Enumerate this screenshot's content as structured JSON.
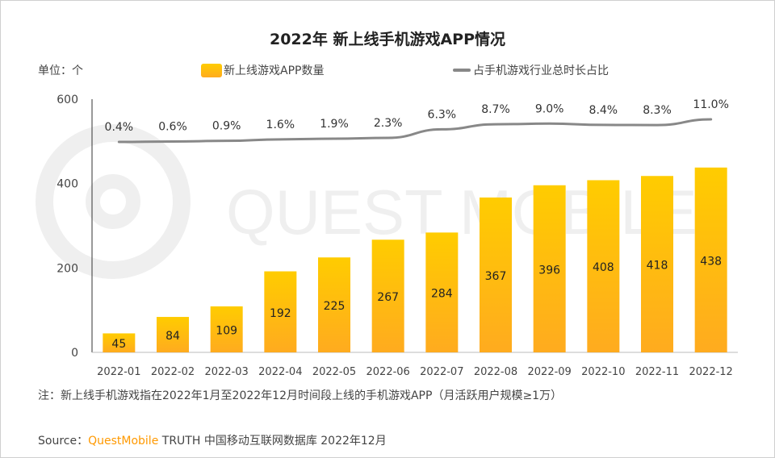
{
  "chart_data": {
    "type": "bar+line",
    "title": "2022年 新上线手机游戏APP情况",
    "unit_label": "单位：个",
    "categories": [
      "2022-01",
      "2022-02",
      "2022-03",
      "2022-04",
      "2022-05",
      "2022-06",
      "2022-07",
      "2022-08",
      "2022-09",
      "2022-10",
      "2022-11",
      "2022-12"
    ],
    "series": [
      {
        "name": "新上线游戏APP数量",
        "type": "bar",
        "values": [
          45,
          84,
          109,
          192,
          225,
          267,
          284,
          367,
          396,
          408,
          418,
          438
        ],
        "color": "#FFC000"
      },
      {
        "name": "占手机游戏行业总时长占比",
        "type": "line",
        "values": [
          0.4,
          0.6,
          0.9,
          1.6,
          1.9,
          2.3,
          6.3,
          8.7,
          9.0,
          8.4,
          8.3,
          11.0
        ],
        "labels": [
          "0.4%",
          "0.6%",
          "0.9%",
          "1.6%",
          "1.9%",
          "2.3%",
          "6.3%",
          "8.7%",
          "9.0%",
          "8.4%",
          "8.3%",
          "11.0%"
        ],
        "color": "#888888"
      }
    ],
    "ylim": [
      0,
      600
    ],
    "yticks": [
      "0",
      "200",
      "400",
      "600"
    ],
    "grid": false,
    "legend": "top"
  },
  "note": "注：新上线手机游戏指在2022年1月至2022年12月时间段上线的手机游戏APP（月活跃用户规模≥1万）",
  "source": {
    "prefix": "Source：",
    "brand": "QuestMobile",
    "rest": " TRUTH 中国移动互联网数据库 2022年12月"
  },
  "watermark": "QUEST MOBILE"
}
